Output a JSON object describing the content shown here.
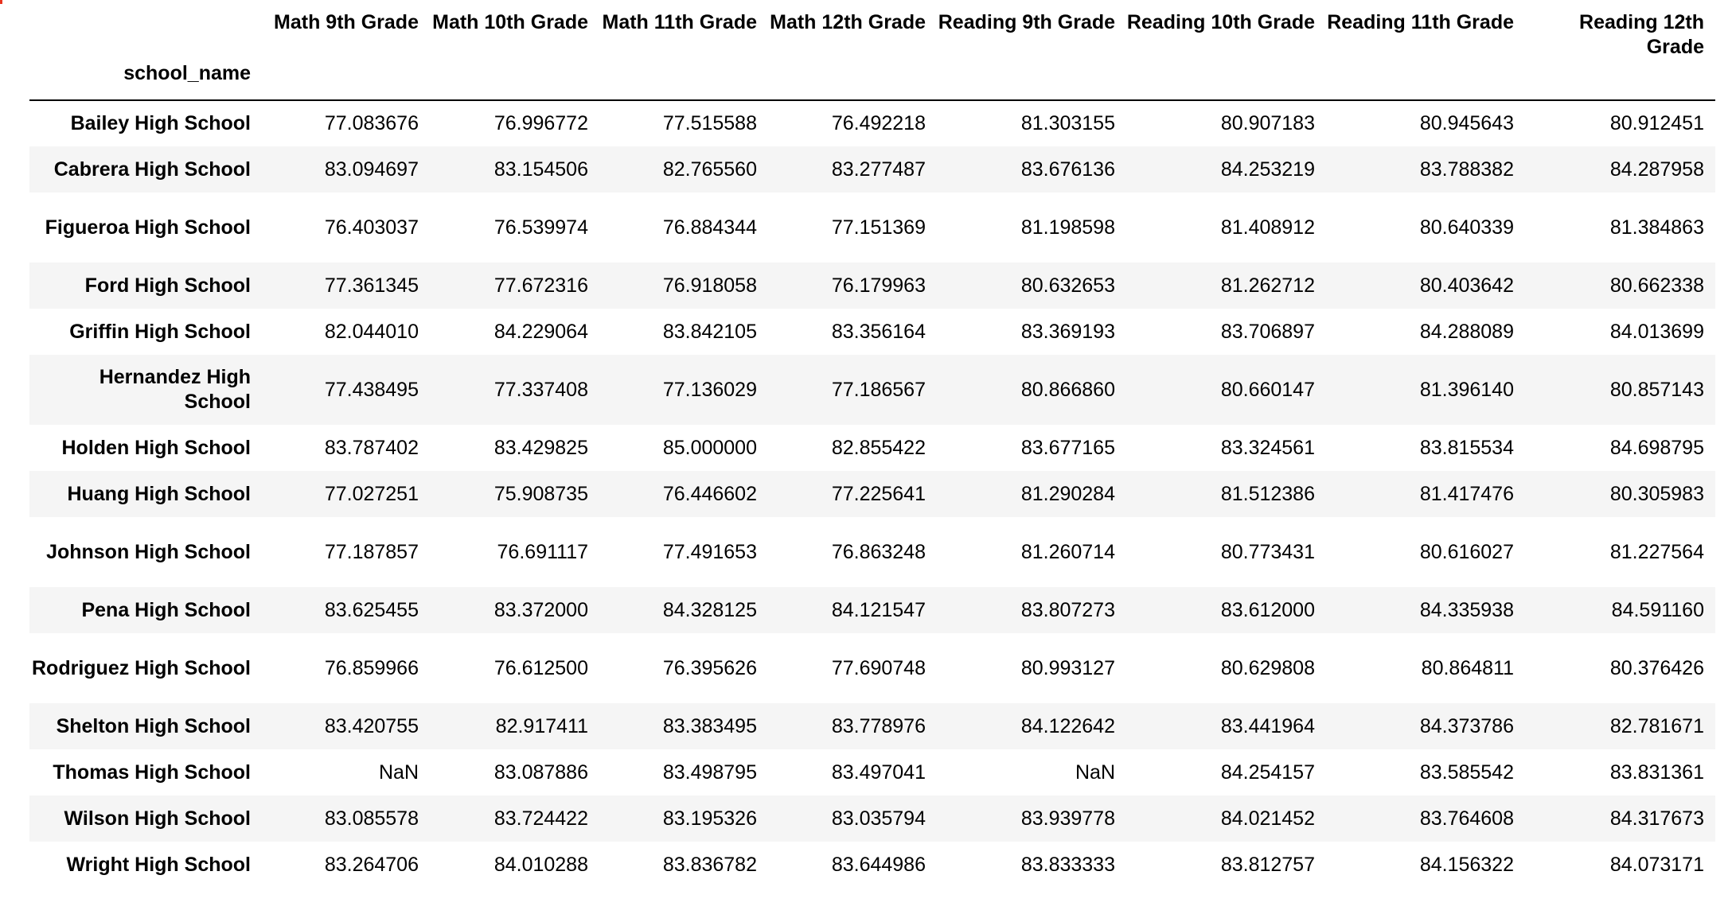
{
  "table": {
    "index_name": "school_name",
    "columns": [
      "Math 9th Grade",
      "Math 10th Grade",
      "Math 11th Grade",
      "Math 12th Grade",
      "Reading 9th Grade",
      "Reading 10th Grade",
      "Reading 11th Grade",
      "Reading 12th Grade"
    ],
    "rows": [
      {
        "school": "Bailey High School",
        "values": [
          "77.083676",
          "76.996772",
          "77.515588",
          "76.492218",
          "81.303155",
          "80.907183",
          "80.945643",
          "80.912451"
        ]
      },
      {
        "school": "Cabrera High School",
        "values": [
          "83.094697",
          "83.154506",
          "82.765560",
          "83.277487",
          "83.676136",
          "84.253219",
          "83.788382",
          "84.287958"
        ]
      },
      {
        "school": "Figueroa High School",
        "values": [
          "76.403037",
          "76.539974",
          "76.884344",
          "77.151369",
          "81.198598",
          "81.408912",
          "80.640339",
          "81.384863"
        ]
      },
      {
        "school": "Ford High School",
        "values": [
          "77.361345",
          "77.672316",
          "76.918058",
          "76.179963",
          "80.632653",
          "81.262712",
          "80.403642",
          "80.662338"
        ]
      },
      {
        "school": "Griffin High School",
        "values": [
          "82.044010",
          "84.229064",
          "83.842105",
          "83.356164",
          "83.369193",
          "83.706897",
          "84.288089",
          "84.013699"
        ]
      },
      {
        "school": "Hernandez High School",
        "values": [
          "77.438495",
          "77.337408",
          "77.136029",
          "77.186567",
          "80.866860",
          "80.660147",
          "81.396140",
          "80.857143"
        ]
      },
      {
        "school": "Holden High School",
        "values": [
          "83.787402",
          "83.429825",
          "85.000000",
          "82.855422",
          "83.677165",
          "83.324561",
          "83.815534",
          "84.698795"
        ]
      },
      {
        "school": "Huang High School",
        "values": [
          "77.027251",
          "75.908735",
          "76.446602",
          "77.225641",
          "81.290284",
          "81.512386",
          "81.417476",
          "80.305983"
        ]
      },
      {
        "school": "Johnson High School",
        "values": [
          "77.187857",
          "76.691117",
          "77.491653",
          "76.863248",
          "81.260714",
          "80.773431",
          "80.616027",
          "81.227564"
        ]
      },
      {
        "school": "Pena High School",
        "values": [
          "83.625455",
          "83.372000",
          "84.328125",
          "84.121547",
          "83.807273",
          "83.612000",
          "84.335938",
          "84.591160"
        ]
      },
      {
        "school": "Rodriguez High School",
        "values": [
          "76.859966",
          "76.612500",
          "76.395626",
          "77.690748",
          "80.993127",
          "80.629808",
          "80.864811",
          "80.376426"
        ]
      },
      {
        "school": "Shelton High School",
        "values": [
          "83.420755",
          "82.917411",
          "83.383495",
          "83.778976",
          "84.122642",
          "83.441964",
          "84.373786",
          "82.781671"
        ]
      },
      {
        "school": "Thomas High School",
        "values": [
          "NaN",
          "83.087886",
          "83.498795",
          "83.497041",
          "NaN",
          "84.254157",
          "83.585542",
          "83.831361"
        ]
      },
      {
        "school": "Wilson High School",
        "values": [
          "83.085578",
          "83.724422",
          "83.195326",
          "83.035794",
          "83.939778",
          "84.021452",
          "83.764608",
          "84.317673"
        ]
      },
      {
        "school": "Wright High School",
        "values": [
          "83.264706",
          "84.010288",
          "83.836782",
          "83.644986",
          "83.833333",
          "83.812757",
          "84.156322",
          "84.073171"
        ]
      }
    ]
  }
}
